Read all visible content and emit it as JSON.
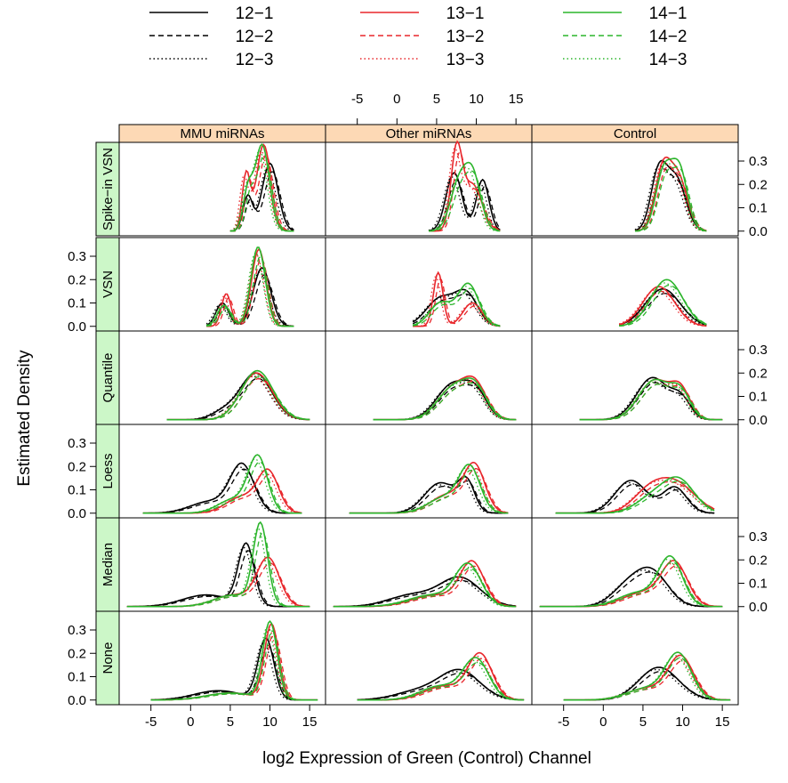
{
  "chart_data": {
    "type": "line",
    "chart_kind": "trellis density plot",
    "xlabel": "log2 Expression of Green (Control) Channel",
    "ylabel": "Estimated Density",
    "xlim": [
      -9,
      17
    ],
    "ylim": [
      -0.02,
      0.38
    ],
    "x_ticks": [
      "-5",
      "0",
      "5",
      "10",
      "15"
    ],
    "y_ticks": [
      "0.0",
      "0.1",
      "0.2",
      "0.3"
    ],
    "grid": false,
    "legend_position": "top",
    "legend": [
      {
        "label": "12−1",
        "color": "#000000",
        "dash": "solid"
      },
      {
        "label": "12−2",
        "color": "#000000",
        "dash": "dashed"
      },
      {
        "label": "12−3",
        "color": "#000000",
        "dash": "dotted"
      },
      {
        "label": "13−1",
        "color": "#e8262b",
        "dash": "solid"
      },
      {
        "label": "13−2",
        "color": "#e8262b",
        "dash": "dashed"
      },
      {
        "label": "13−3",
        "color": "#e8262b",
        "dash": "dotted"
      },
      {
        "label": "14−1",
        "color": "#2cb52c",
        "dash": "solid"
      },
      {
        "label": "14−2",
        "color": "#2cb52c",
        "dash": "dashed"
      },
      {
        "label": "14−3",
        "color": "#2cb52c",
        "dash": "dotted"
      }
    ],
    "columns": [
      "MMU miRNAs",
      "Other miRNAs",
      "Control"
    ],
    "rows": [
      "Spike−in VSN",
      "VSN",
      "Quantile",
      "Loess",
      "Median",
      "None"
    ],
    "panels": [
      {
        "row": 0,
        "col": 0,
        "peaks": [
          [
            10.0,
            0.29,
            1.0,
            "black"
          ],
          [
            7.2,
            0.15,
            0.6,
            "black"
          ],
          [
            9.2,
            0.37,
            0.9,
            "red"
          ],
          [
            7.0,
            0.24,
            0.5,
            "red"
          ],
          [
            9.0,
            0.37,
            0.9,
            "green"
          ],
          [
            7.2,
            0.16,
            0.6,
            "green"
          ]
        ],
        "range": [
          5,
          13
        ]
      },
      {
        "row": 0,
        "col": 1,
        "peaks": [
          [
            7.2,
            0.25,
            1.0,
            "black"
          ],
          [
            10.8,
            0.22,
            0.8,
            "black"
          ],
          [
            7.5,
            0.33,
            0.7,
            "red"
          ],
          [
            9.5,
            0.2,
            1.2,
            "red"
          ],
          [
            7.8,
            0.2,
            1.1,
            "green"
          ],
          [
            9.6,
            0.22,
            1.0,
            "green"
          ]
        ],
        "range": [
          4,
          13
        ]
      },
      {
        "row": 0,
        "col": 2,
        "peaks": [
          [
            7.0,
            0.25,
            1.0,
            "black"
          ],
          [
            9.2,
            0.22,
            1.2,
            "black"
          ],
          [
            7.5,
            0.26,
            1.0,
            "red"
          ],
          [
            9.5,
            0.22,
            1.1,
            "red"
          ],
          [
            7.6,
            0.25,
            1.0,
            "green"
          ],
          [
            9.6,
            0.26,
            1.0,
            "green"
          ]
        ],
        "range": [
          4,
          13
        ]
      },
      {
        "row": 1,
        "col": 0,
        "peaks": [
          [
            9.0,
            0.25,
            1.1,
            "black"
          ],
          [
            4.0,
            0.1,
            0.8,
            "black"
          ],
          [
            8.6,
            0.33,
            0.9,
            "red"
          ],
          [
            4.5,
            0.14,
            0.6,
            "red"
          ],
          [
            8.5,
            0.34,
            0.9,
            "green"
          ],
          [
            4.2,
            0.09,
            0.8,
            "green"
          ]
        ],
        "range": [
          2,
          13
        ]
      },
      {
        "row": 1,
        "col": 1,
        "peaks": [
          [
            5.5,
            0.12,
            1.8,
            "black"
          ],
          [
            8.8,
            0.13,
            1.4,
            "black"
          ],
          [
            5.2,
            0.23,
            0.6,
            "red"
          ],
          [
            9.5,
            0.1,
            1.2,
            "red"
          ],
          [
            5.5,
            0.1,
            1.4,
            "green"
          ],
          [
            9.0,
            0.18,
            1.3,
            "green"
          ]
        ],
        "range": [
          2,
          13
        ]
      },
      {
        "row": 1,
        "col": 2,
        "peaks": [
          [
            7.5,
            0.16,
            2.2,
            "black"
          ],
          [
            7.0,
            0.17,
            2.0,
            "red"
          ],
          [
            8.0,
            0.2,
            2.0,
            "green"
          ]
        ],
        "range": [
          2,
          13
        ]
      },
      {
        "row": 2,
        "col": 0,
        "peaks": [
          [
            8.2,
            0.2,
            2.0,
            "black"
          ],
          [
            4.0,
            0.03,
            1.5,
            "black"
          ],
          [
            8.3,
            0.2,
            2.0,
            "red"
          ],
          [
            8.4,
            0.21,
            2.0,
            "green"
          ]
        ],
        "range": [
          -3,
          15
        ]
      },
      {
        "row": 2,
        "col": 1,
        "peaks": [
          [
            7.0,
            0.15,
            2.0,
            "black"
          ],
          [
            10.0,
            0.1,
            1.4,
            "black"
          ],
          [
            7.2,
            0.14,
            2.0,
            "red"
          ],
          [
            10.0,
            0.12,
            1.4,
            "red"
          ],
          [
            7.2,
            0.14,
            2.0,
            "green"
          ],
          [
            10.0,
            0.11,
            1.4,
            "green"
          ]
        ],
        "range": [
          -3,
          15
        ]
      },
      {
        "row": 2,
        "col": 2,
        "peaks": [
          [
            6.2,
            0.18,
            2.0,
            "black"
          ],
          [
            9.8,
            0.08,
            1.2,
            "black"
          ],
          [
            6.5,
            0.17,
            2.0,
            "red"
          ],
          [
            9.8,
            0.11,
            1.2,
            "red"
          ],
          [
            6.5,
            0.17,
            2.0,
            "green"
          ],
          [
            9.8,
            0.1,
            1.2,
            "green"
          ]
        ],
        "range": [
          -3,
          15
        ]
      },
      {
        "row": 3,
        "col": 0,
        "peaks": [
          [
            6.5,
            0.2,
            1.5,
            "black"
          ],
          [
            2.5,
            0.05,
            2.5,
            "black"
          ],
          [
            9.8,
            0.17,
            1.3,
            "red"
          ],
          [
            6.5,
            0.07,
            2.0,
            "red"
          ],
          [
            8.5,
            0.23,
            1.2,
            "green"
          ],
          [
            5.5,
            0.06,
            2.0,
            "green"
          ]
        ],
        "range": [
          -6,
          14
        ]
      },
      {
        "row": 3,
        "col": 1,
        "peaks": [
          [
            5.5,
            0.13,
            2.0,
            "black"
          ],
          [
            8.8,
            0.12,
            1.0,
            "black"
          ],
          [
            9.8,
            0.19,
            1.3,
            "red"
          ],
          [
            6.5,
            0.08,
            2.2,
            "red"
          ],
          [
            9.2,
            0.18,
            1.3,
            "green"
          ],
          [
            6.2,
            0.07,
            2.2,
            "green"
          ]
        ],
        "range": [
          -6,
          14
        ]
      },
      {
        "row": 3,
        "col": 2,
        "peaks": [
          [
            3.5,
            0.14,
            2.0,
            "black"
          ],
          [
            9.0,
            0.11,
            1.5,
            "black"
          ],
          [
            9.0,
            0.13,
            2.5,
            "red"
          ],
          [
            5.5,
            0.07,
            2.0,
            "red"
          ],
          [
            9.5,
            0.14,
            2.0,
            "green"
          ],
          [
            6.0,
            0.06,
            2.0,
            "green"
          ]
        ],
        "range": [
          -6,
          14
        ]
      },
      {
        "row": 4,
        "col": 0,
        "peaks": [
          [
            7.0,
            0.26,
            1.0,
            "black"
          ],
          [
            2.0,
            0.05,
            3.0,
            "black"
          ],
          [
            9.8,
            0.2,
            1.4,
            "red"
          ],
          [
            5.5,
            0.05,
            2.5,
            "red"
          ],
          [
            8.8,
            0.34,
            0.9,
            "green"
          ],
          [
            5.5,
            0.05,
            2.5,
            "green"
          ]
        ],
        "range": [
          -8,
          15
        ]
      },
      {
        "row": 4,
        "col": 1,
        "peaks": [
          [
            8.0,
            0.12,
            2.5,
            "black"
          ],
          [
            2.0,
            0.05,
            3.0,
            "black"
          ],
          [
            9.5,
            0.18,
            1.5,
            "red"
          ],
          [
            5.0,
            0.05,
            3.0,
            "red"
          ],
          [
            9.0,
            0.17,
            1.6,
            "green"
          ],
          [
            4.5,
            0.05,
            3.0,
            "green"
          ]
        ],
        "range": [
          -8,
          15
        ]
      },
      {
        "row": 4,
        "col": 2,
        "peaks": [
          [
            6.2,
            0.14,
            2.0,
            "black"
          ],
          [
            3.0,
            0.08,
            2.0,
            "black"
          ],
          [
            9.0,
            0.18,
            1.6,
            "red"
          ],
          [
            5.0,
            0.06,
            2.5,
            "red"
          ],
          [
            8.5,
            0.2,
            1.5,
            "green"
          ],
          [
            4.5,
            0.06,
            2.5,
            "green"
          ]
        ],
        "range": [
          -8,
          15
        ]
      },
      {
        "row": 5,
        "col": 0,
        "peaks": [
          [
            9.5,
            0.26,
            1.0,
            "black"
          ],
          [
            3.5,
            0.04,
            3.0,
            "black"
          ],
          [
            10.2,
            0.32,
            0.9,
            "red"
          ],
          [
            5.0,
            0.03,
            3.0,
            "red"
          ],
          [
            10.0,
            0.33,
            0.9,
            "green"
          ],
          [
            5.0,
            0.03,
            3.0,
            "green"
          ]
        ],
        "range": [
          -5,
          16
        ]
      },
      {
        "row": 5,
        "col": 1,
        "peaks": [
          [
            8.0,
            0.12,
            2.5,
            "black"
          ],
          [
            3.0,
            0.04,
            3.0,
            "black"
          ],
          [
            10.5,
            0.19,
            1.5,
            "red"
          ],
          [
            6.0,
            0.06,
            2.5,
            "red"
          ],
          [
            10.0,
            0.17,
            1.6,
            "green"
          ],
          [
            5.5,
            0.06,
            2.5,
            "green"
          ]
        ],
        "range": [
          -5,
          16
        ]
      },
      {
        "row": 5,
        "col": 2,
        "peaks": [
          [
            7.0,
            0.14,
            2.5,
            "black"
          ],
          [
            9.8,
            0.18,
            1.6,
            "red"
          ],
          [
            5.5,
            0.05,
            2.5,
            "red"
          ],
          [
            9.5,
            0.19,
            1.6,
            "green"
          ],
          [
            5.5,
            0.05,
            2.5,
            "green"
          ]
        ],
        "range": [
          -5,
          16
        ]
      }
    ]
  }
}
